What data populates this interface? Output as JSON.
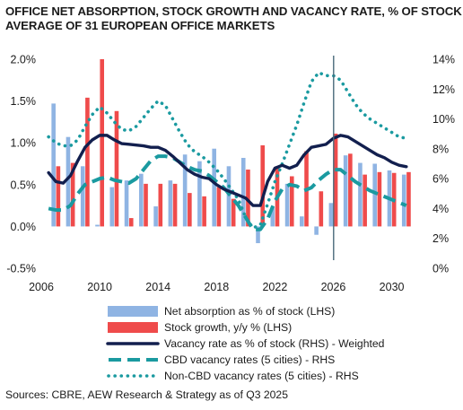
{
  "title_lines": [
    "OFFICE NET ABSORPTION, STOCK GROWTH AND VACANCY RATE, % OF STOCK -",
    "AVERAGE OF 31 EUROPEAN OFFICE MARKETS"
  ],
  "source": "Sources: CBRE, AEW Research & Strategy as of Q3 2025",
  "colors": {
    "net_absorption": "#8fb4e3",
    "stock_growth": "#ef4b4b",
    "vacancy_weighted": "#121f4e",
    "cbd": "#1a9aa0",
    "non_cbd": "#1a9aa0",
    "marker_line": "#4a6a7a"
  },
  "chart_data": {
    "type": "bar+line",
    "title": "OFFICE NET ABSORPTION, STOCK GROWTH AND VACANCY RATE, % OF STOCK - AVERAGE OF 31 EUROPEAN OFFICE MARKETS",
    "x_ticks": [
      "2006",
      "2010",
      "2014",
      "2018",
      "2022",
      "2026",
      "2030"
    ],
    "x_tick_values": [
      2006,
      2010,
      2014,
      2018,
      2022,
      2026,
      2030
    ],
    "xlim": [
      2006,
      2031.5
    ],
    "y_left_ticks": [
      "2.0%",
      "1.5%",
      "1.0%",
      "0.5%",
      "0.0%",
      "-0.5%"
    ],
    "y_left_tick_values": [
      2.0,
      1.5,
      1.0,
      0.5,
      0.0,
      -0.5
    ],
    "y_left_lim": [
      -0.5,
      2.0
    ],
    "y_right_ticks": [
      "14%",
      "12%",
      "10%",
      "8%",
      "6%",
      "4%",
      "2%",
      "0%"
    ],
    "y_right_tick_values": [
      14,
      12,
      10,
      8,
      6,
      4,
      2,
      0
    ],
    "y_right_lim": [
      0,
      14
    ],
    "vertical_marker_year": 2026,
    "years": [
      2007,
      2008,
      2009,
      2010,
      2011,
      2012,
      2013,
      2014,
      2015,
      2016,
      2017,
      2018,
      2019,
      2020,
      2021,
      2022,
      2023,
      2024,
      2025,
      2026,
      2027,
      2028,
      2029,
      2030,
      2031
    ],
    "series": [
      {
        "name": "Net absorption as % of stock (LHS)",
        "kind": "bar",
        "axis": "left",
        "values": [
          1.47,
          1.07,
          0.72,
          0.02,
          0.47,
          0.55,
          0.63,
          0.24,
          0.55,
          0.86,
          0.78,
          0.93,
          0.72,
          0.82,
          -0.2,
          0.23,
          0.51,
          0.12,
          -0.1,
          0.28,
          0.85,
          0.76,
          0.75,
          0.67,
          0.62
        ]
      },
      {
        "name": "Stock growth, y/y % (LHS)",
        "kind": "bar",
        "axis": "left",
        "values": [
          0.72,
          0.76,
          1.54,
          2.0,
          1.38,
          0.1,
          0.51,
          0.51,
          0.51,
          0.4,
          0.36,
          0.47,
          0.33,
          0.68,
          0.97,
          0.72,
          0.6,
          0.9,
          0.42,
          1.11,
          0.87,
          0.62,
          0.65,
          0.64,
          0.65
        ]
      },
      {
        "name": "Vacancy rate as % of stock (RHS) - Weighted",
        "kind": "line",
        "style": "solid",
        "axis": "right",
        "x": [
          2006.5,
          2007,
          2007.5,
          2008,
          2008.5,
          2009,
          2009.5,
          2010,
          2010.5,
          2011,
          2011.5,
          2012,
          2012.5,
          2013,
          2013.5,
          2014,
          2014.5,
          2015,
          2015.5,
          2016,
          2016.5,
          2017,
          2017.5,
          2018,
          2018.5,
          2019,
          2019.5,
          2020,
          2020.5,
          2021,
          2021.5,
          2022,
          2022.5,
          2023,
          2023.5,
          2024,
          2024.5,
          2025,
          2025.5,
          2026,
          2026.5,
          2027,
          2027.5,
          2028,
          2028.5,
          2029,
          2029.5,
          2030,
          2030.5,
          2031
        ],
        "y": [
          6.4,
          5.8,
          5.7,
          6.2,
          7.2,
          8.1,
          8.6,
          8.9,
          8.9,
          8.6,
          8.35,
          8.3,
          8.25,
          8.2,
          8.1,
          8.1,
          7.9,
          7.5,
          7.05,
          6.6,
          6.3,
          6.1,
          6.0,
          5.6,
          5.3,
          5.1,
          4.9,
          4.7,
          4.2,
          4.2,
          5.8,
          6.7,
          6.9,
          6.7,
          6.9,
          7.6,
          8.1,
          8.2,
          8.3,
          8.7,
          8.9,
          8.8,
          8.5,
          8.2,
          7.9,
          7.6,
          7.4,
          7.1,
          6.9,
          6.8
        ]
      },
      {
        "name": "CBD vacancy rates (5 cities) - RHS",
        "kind": "line",
        "style": "dashed",
        "axis": "right",
        "x": [
          2006.5,
          2007,
          2007.5,
          2008,
          2008.5,
          2009,
          2009.5,
          2010,
          2010.5,
          2011,
          2011.5,
          2012,
          2012.5,
          2013,
          2013.5,
          2014,
          2014.5,
          2015,
          2015.5,
          2016,
          2016.5,
          2017,
          2017.5,
          2018,
          2018.5,
          2019,
          2019.5,
          2020,
          2020.5,
          2021,
          2021.5,
          2022,
          2022.5,
          2023,
          2023.5,
          2024,
          2024.5,
          2025,
          2025.5,
          2026,
          2026.5,
          2027,
          2027.5,
          2028,
          2028.5,
          2029,
          2029.5,
          2030,
          2030.5,
          2031
        ],
        "y": [
          4.0,
          3.9,
          3.9,
          4.2,
          5.0,
          5.6,
          5.8,
          6.0,
          6.1,
          5.9,
          5.8,
          5.7,
          6.0,
          6.6,
          7.2,
          7.5,
          7.5,
          7.4,
          7.1,
          6.8,
          6.6,
          6.5,
          6.2,
          5.8,
          5.4,
          4.8,
          4.2,
          3.4,
          2.6,
          2.6,
          3.3,
          4.5,
          5.3,
          5.6,
          5.5,
          5.2,
          5.4,
          5.9,
          6.3,
          6.6,
          6.6,
          6.2,
          5.8,
          5.5,
          5.2,
          5.0,
          4.8,
          4.6,
          4.4,
          4.2
        ]
      },
      {
        "name": "Non-CBD vacancy rates (5 cities) - RHS",
        "kind": "line",
        "style": "dotted",
        "axis": "right",
        "x": [
          2006.5,
          2007,
          2007.5,
          2008,
          2008.5,
          2009,
          2009.5,
          2010,
          2010.5,
          2011,
          2011.5,
          2012,
          2012.5,
          2013,
          2013.5,
          2014,
          2014.5,
          2015,
          2015.5,
          2016,
          2016.5,
          2017,
          2017.5,
          2018,
          2018.5,
          2019,
          2019.5,
          2020,
          2020.5,
          2021,
          2021.5,
          2022,
          2022.5,
          2023,
          2023.5,
          2024,
          2024.5,
          2025,
          2025.5,
          2026,
          2026.5,
          2027,
          2027.5,
          2028,
          2028.5,
          2029,
          2029.5,
          2030,
          2030.5,
          2031
        ],
        "y": [
          8.8,
          8.4,
          8.2,
          8.2,
          8.6,
          9.5,
          10.3,
          10.8,
          10.4,
          9.8,
          9.3,
          9.2,
          9.5,
          10.1,
          10.7,
          11.2,
          10.9,
          10.0,
          9.1,
          8.3,
          7.8,
          7.5,
          7.1,
          6.6,
          6.0,
          5.3,
          4.6,
          3.4,
          2.7,
          2.9,
          4.3,
          5.8,
          7.0,
          8.3,
          9.6,
          11.1,
          12.5,
          13.1,
          12.9,
          12.9,
          12.6,
          11.8,
          11.0,
          10.4,
          10.0,
          9.7,
          9.4,
          9.1,
          8.8,
          8.7
        ]
      }
    ]
  }
}
